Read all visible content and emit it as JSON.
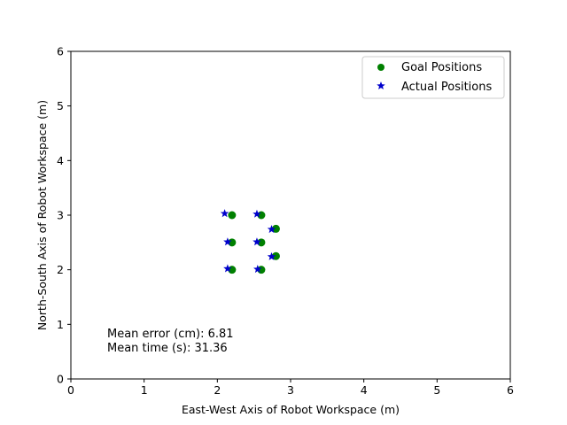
{
  "chart_data": {
    "type": "scatter",
    "title": "",
    "xlabel": "East-West Axis of Robot Workspace (m)",
    "ylabel": "North-South Axis of Robot Workspace (m)",
    "xlim": [
      0,
      6
    ],
    "ylim": [
      0,
      6
    ],
    "xticks": [
      "0",
      "1",
      "2",
      "3",
      "4",
      "5",
      "6"
    ],
    "yticks": [
      "0",
      "1",
      "2",
      "3",
      "4",
      "5",
      "6"
    ],
    "grid": false,
    "legend_position": "top-right",
    "series": [
      {
        "name": "Goal Positions",
        "marker": "circle",
        "color": "#008000",
        "points": [
          {
            "x": 2.2,
            "y": 3.0
          },
          {
            "x": 2.6,
            "y": 3.0
          },
          {
            "x": 2.2,
            "y": 2.5
          },
          {
            "x": 2.6,
            "y": 2.5
          },
          {
            "x": 2.2,
            "y": 2.0
          },
          {
            "x": 2.6,
            "y": 2.0
          },
          {
            "x": 2.8,
            "y": 2.75
          },
          {
            "x": 2.8,
            "y": 2.25
          }
        ]
      },
      {
        "name": "Actual Positions",
        "marker": "star",
        "color": "#0000cc",
        "points": [
          {
            "x": 2.1,
            "y": 3.03
          },
          {
            "x": 2.54,
            "y": 3.02
          },
          {
            "x": 2.14,
            "y": 2.51
          },
          {
            "x": 2.54,
            "y": 2.51
          },
          {
            "x": 2.14,
            "y": 2.02
          },
          {
            "x": 2.55,
            "y": 2.01
          },
          {
            "x": 2.74,
            "y": 2.74
          },
          {
            "x": 2.74,
            "y": 2.24
          }
        ]
      }
    ],
    "annotations": [
      "Mean error (cm): 6.81",
      "Mean time (s): 31.36"
    ]
  }
}
